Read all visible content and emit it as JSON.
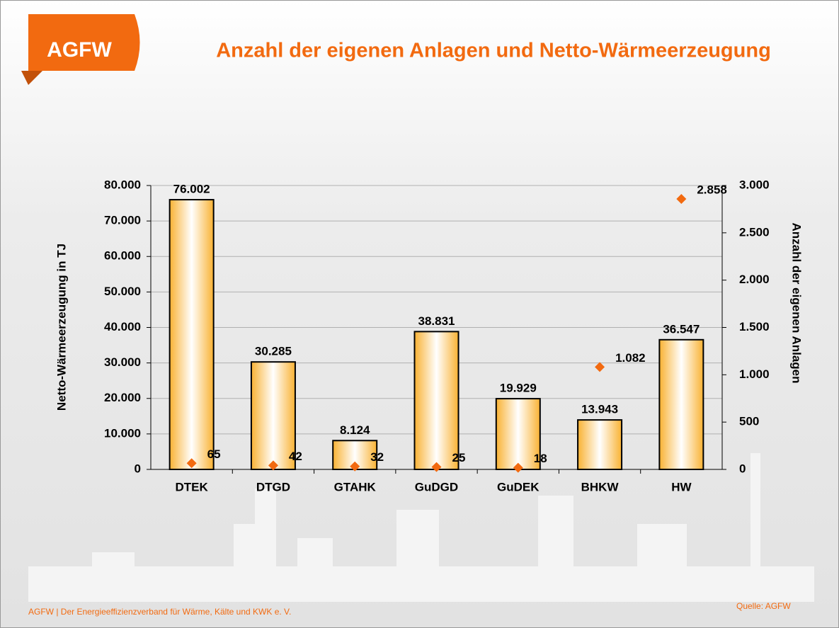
{
  "header": {
    "logo": "AGFW"
  },
  "footer": {
    "left": "AGFW | Der Energieeffizienzverband für Wärme, Kälte und KWK e. V.",
    "source": "Quelle:  AGFW"
  },
  "chart_data": {
    "type": "bar",
    "title": "Anzahl der eigenen Anlagen und Netto-Wärmeerzeugung",
    "y_label": "Netto-Wärmeerzeugung in TJ",
    "y2_label": "Anzahl der eigenen Anlagen",
    "categories": [
      "DTEK",
      "DTGD",
      "GTAHK",
      "GuDGD",
      "GuDEK",
      "BHKW",
      "HW"
    ],
    "series": [
      {
        "type": "bar",
        "color": "#f9b233",
        "values": [
          76002,
          30285,
          8124,
          38831,
          19929,
          13943,
          36547
        ],
        "value_labels": [
          "76.002",
          "30.285",
          "8.124",
          "38.831",
          "19.929",
          "13.943",
          "36.547"
        ]
      },
      {
        "type": "scatter",
        "axis": "y2",
        "color": "#f26a10",
        "values": [
          65,
          42,
          32,
          25,
          18,
          1082,
          2858
        ],
        "value_labels": [
          "65",
          "42",
          "32",
          "25",
          "18",
          "1.082",
          "2.858"
        ]
      }
    ],
    "ylim": [
      0,
      80000
    ],
    "yticks": [
      0,
      {
        "value": 10000,
        "label": "10.000"
      },
      {
        "value": 20000,
        "label": "20.000"
      },
      {
        "value": 30000,
        "label": "30.000"
      },
      {
        "value": 40000,
        "label": "40.000"
      },
      {
        "value": 50000,
        "label": "50.000"
      },
      {
        "value": 60000,
        "label": "60.000"
      },
      {
        "value": 70000,
        "label": "70.000"
      },
      {
        "value": 80000,
        "label": "80.000"
      }
    ],
    "y2lim": [
      0,
      3000
    ],
    "y2ticks": [
      0,
      500,
      {
        "value": 1000,
        "label": "1.000"
      },
      {
        "value": 1500,
        "label": "1.500"
      },
      {
        "value": 2000,
        "label": "2.000"
      },
      {
        "value": 2500,
        "label": "2.500"
      },
      {
        "value": 3000,
        "label": "3.000"
      }
    ],
    "grid": true
  }
}
